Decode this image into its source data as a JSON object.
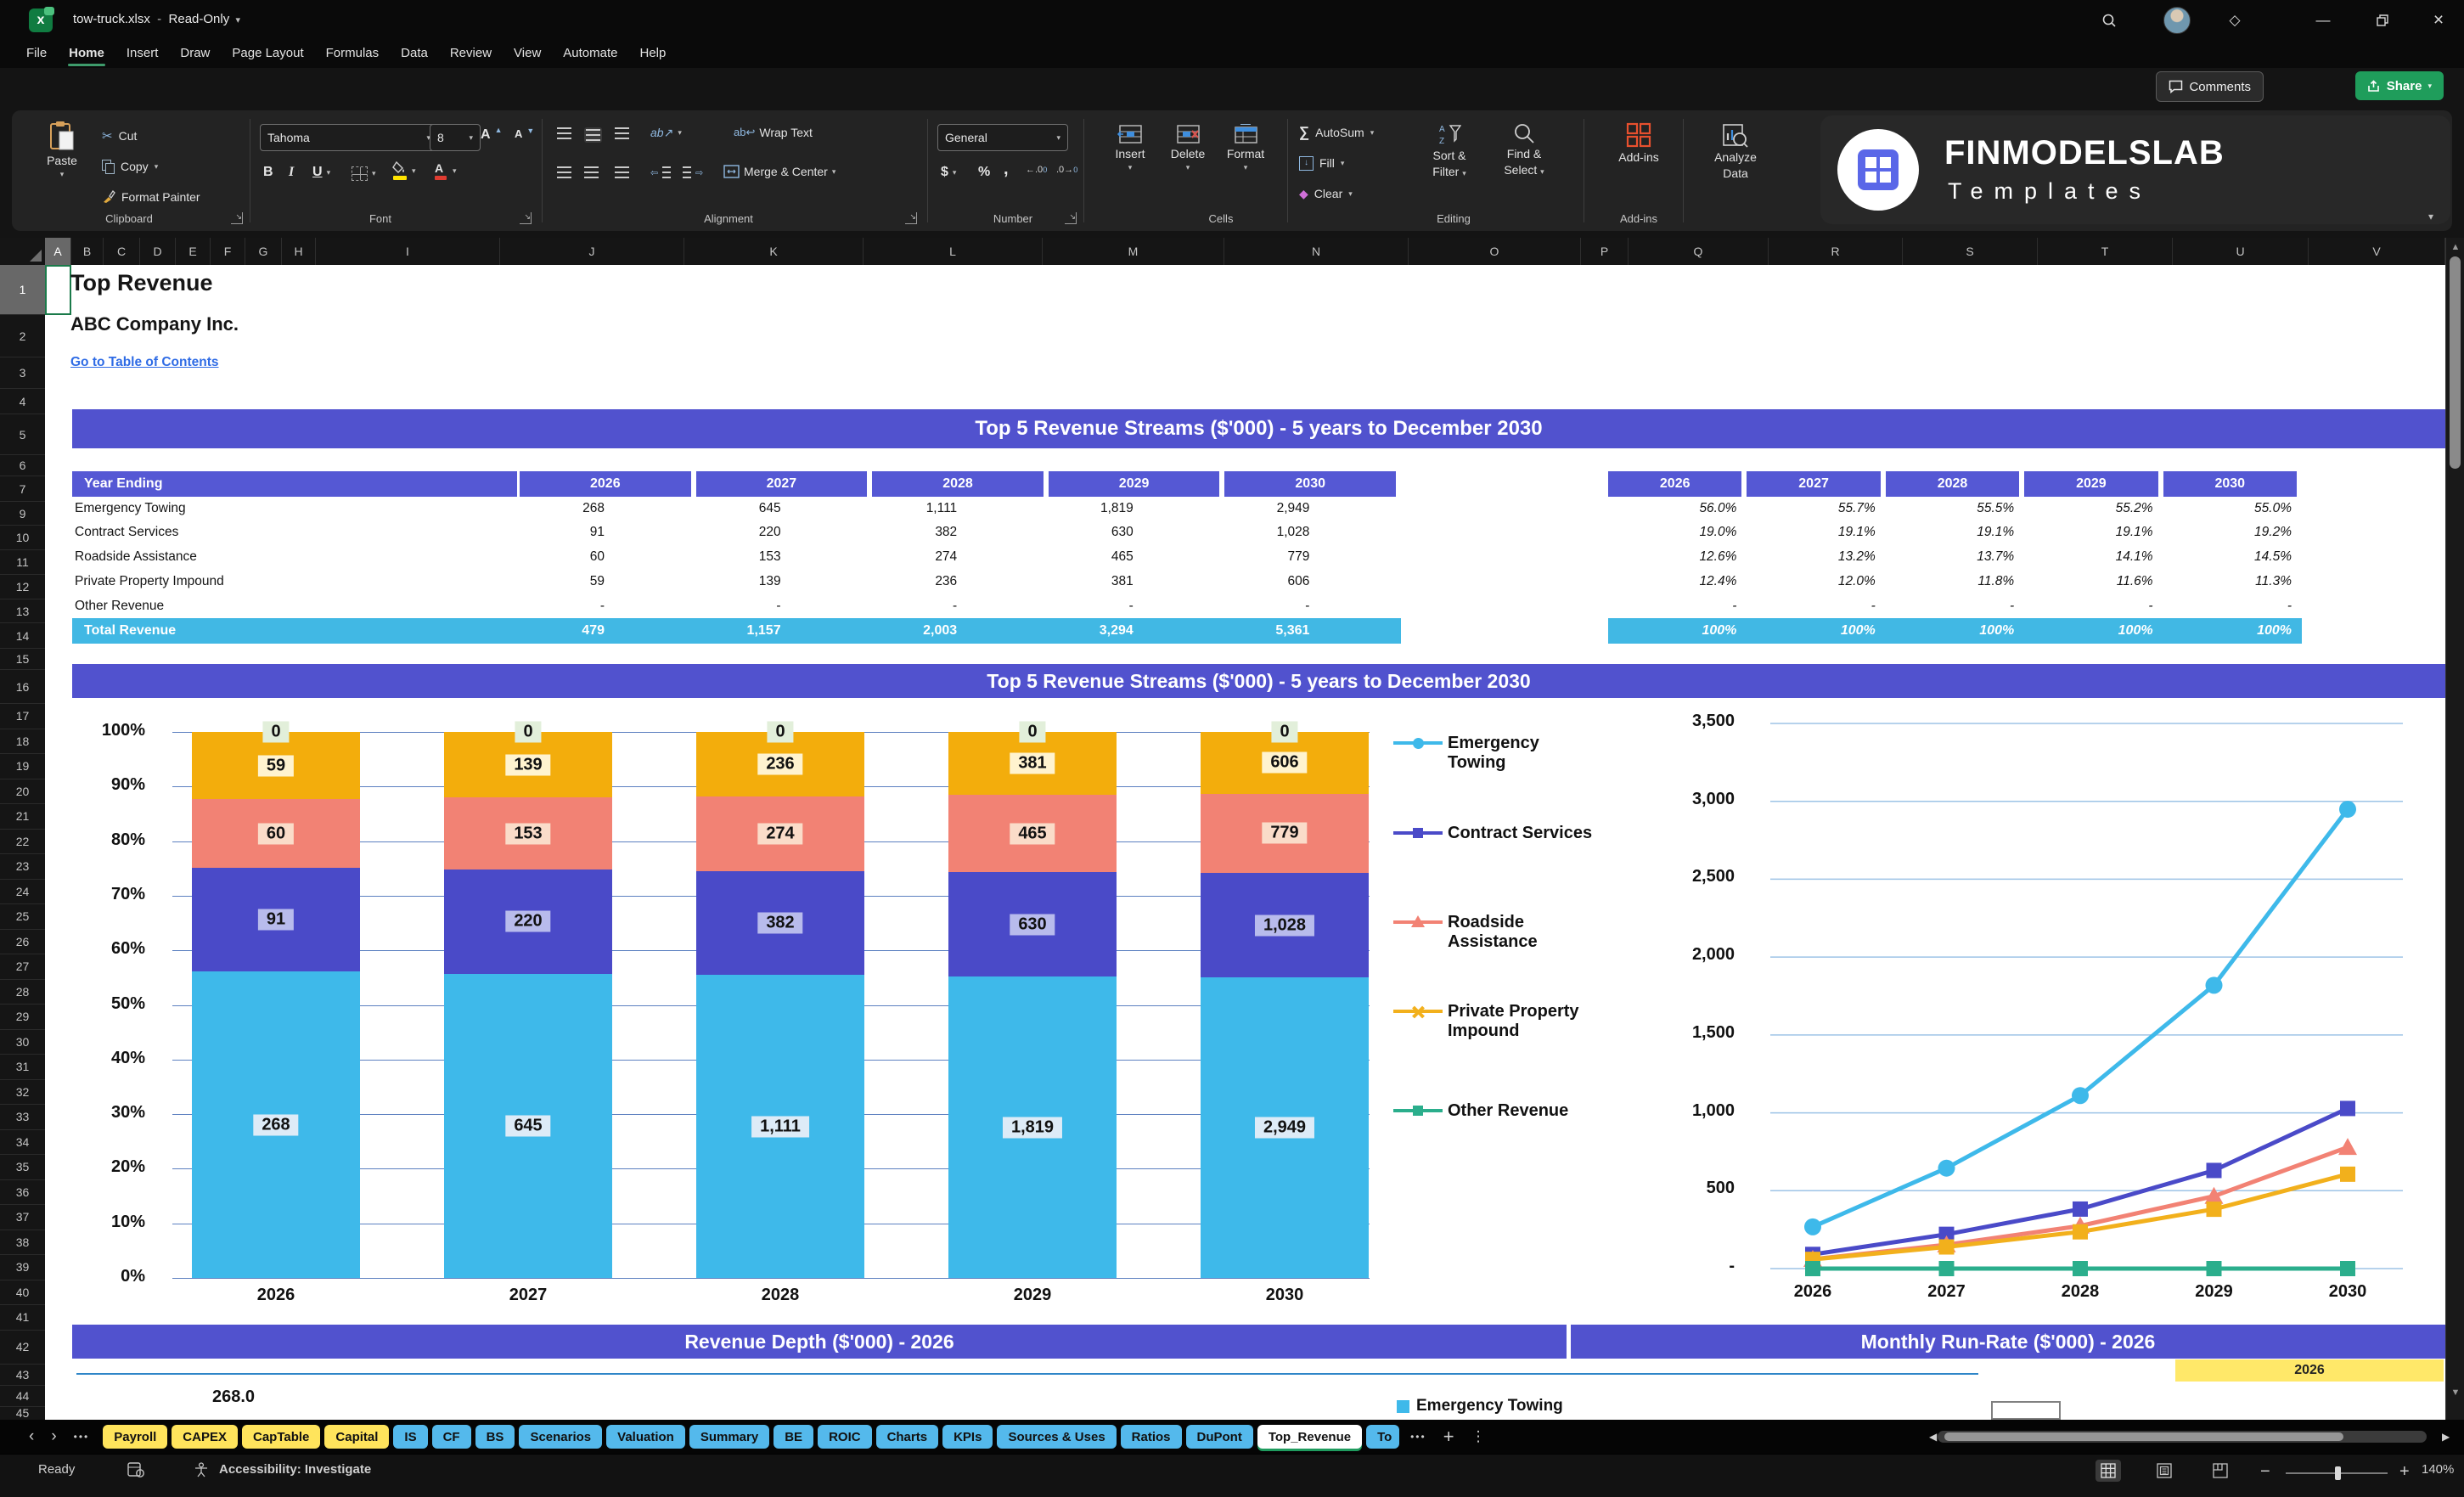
{
  "window": {
    "title": "tow-truck.xlsx",
    "mode": "Read-Only"
  },
  "menu": {
    "tabs": [
      "File",
      "Home",
      "Insert",
      "Draw",
      "Page Layout",
      "Formulas",
      "Data",
      "Review",
      "View",
      "Automate",
      "Help"
    ],
    "active_tab": "Home",
    "comments_label": "Comments",
    "share_label": "Share"
  },
  "ribbon": {
    "clipboard": {
      "label": "Clipboard",
      "paste": "Paste",
      "cut": "Cut",
      "copy": "Copy",
      "format_painter": "Format Painter"
    },
    "font": {
      "label": "Font",
      "font_name": "Tahoma",
      "font_size": "8"
    },
    "alignment": {
      "label": "Alignment",
      "wrap_text": "Wrap Text",
      "merge_center": "Merge & Center"
    },
    "number": {
      "label": "Number",
      "format": "General"
    },
    "cells": {
      "label": "Cells",
      "insert": "Insert",
      "delete": "Delete",
      "format": "Format"
    },
    "editing": {
      "label": "Editing",
      "autosum": "AutoSum",
      "fill": "Fill",
      "clear": "Clear",
      "sort_line1": "Sort &",
      "sort_line2": "Filter",
      "find_line1": "Find &",
      "find_line2": "Select"
    },
    "addins": {
      "label": "Add-ins",
      "button": "Add-ins",
      "analyze_line1": "Analyze",
      "analyze_line2": "Data"
    }
  },
  "brand": {
    "name": "FINMODELSLAB",
    "subtitle": "Templates"
  },
  "grid": {
    "selected_cell": "A1",
    "columns": [
      [
        "A",
        31
      ],
      [
        "B",
        38
      ],
      [
        "C",
        43
      ],
      [
        "D",
        42
      ],
      [
        "E",
        41
      ],
      [
        "F",
        41
      ],
      [
        "G",
        43
      ],
      [
        "H",
        40
      ],
      [
        "I",
        217
      ],
      [
        "J",
        217
      ],
      [
        "K",
        211
      ],
      [
        "L",
        211
      ],
      [
        "M",
        214
      ],
      [
        "N",
        217
      ],
      [
        "O",
        203
      ],
      [
        "P",
        56
      ],
      [
        "Q",
        165
      ],
      [
        "R",
        158
      ],
      [
        "S",
        159
      ],
      [
        "T",
        159
      ],
      [
        "U",
        160
      ],
      [
        "V",
        161
      ]
    ],
    "selected_column": "A",
    "rows": [
      [
        1,
        59
      ],
      [
        2,
        50
      ],
      [
        3,
        37
      ],
      [
        4,
        30
      ],
      [
        5,
        48
      ],
      [
        6,
        25
      ],
      [
        7,
        30
      ],
      [
        9,
        28
      ],
      [
        10,
        29
      ],
      [
        11,
        29
      ],
      [
        12,
        29
      ],
      [
        13,
        28
      ],
      [
        14,
        30
      ],
      [
        15,
        25
      ],
      [
        16,
        40
      ],
      [
        17,
        29.5
      ],
      [
        18,
        29.5
      ],
      [
        19,
        29.5
      ],
      [
        20,
        29.5
      ],
      [
        21,
        29.5
      ],
      [
        22,
        29.5
      ],
      [
        23,
        29.5
      ],
      [
        24,
        29.5
      ],
      [
        25,
        29.5
      ],
      [
        26,
        29.5
      ],
      [
        27,
        29.5
      ],
      [
        28,
        29.5
      ],
      [
        29,
        29.5
      ],
      [
        30,
        29.5
      ],
      [
        31,
        29.5
      ],
      [
        32,
        29.5
      ],
      [
        33,
        29.5
      ],
      [
        34,
        29.5
      ],
      [
        35,
        29.5
      ],
      [
        36,
        29.5
      ],
      [
        37,
        29.5
      ],
      [
        38,
        29.5
      ],
      [
        39,
        29.5
      ],
      [
        40,
        29.5
      ],
      [
        41,
        29.5
      ],
      [
        42,
        40
      ],
      [
        43,
        25
      ],
      [
        44,
        25
      ],
      [
        45,
        16
      ]
    ],
    "selected_row": 1
  },
  "sheet": {
    "title": "Top Revenue",
    "company": "ABC Company Inc.",
    "toc_link": "Go to Table of Contents",
    "banner_top": "Top 5 Revenue Streams ($'000) - 5 years to December 2030",
    "banner_chart": "Top 5 Revenue Streams ($'000) - 5 years to December 2030",
    "banner_depth": "Revenue Depth ($'000) - 2026",
    "banner_runrate": "Monthly Run-Rate ($'000) - 2026",
    "runrate_year": "2026",
    "depth_value_label": "268.0",
    "depth_legend": "Emergency Towing"
  },
  "revenue_table": {
    "header": [
      "Year Ending",
      "2026",
      "2027",
      "2028",
      "2029",
      "2030"
    ],
    "rows": [
      {
        "label": "Emergency Towing",
        "values": [
          "268",
          "645",
          "1,111",
          "1,819",
          "2,949"
        ]
      },
      {
        "label": "Contract Services",
        "values": [
          "91",
          "220",
          "382",
          "630",
          "1,028"
        ]
      },
      {
        "label": "Roadside Assistance",
        "values": [
          "60",
          "153",
          "274",
          "465",
          "779"
        ]
      },
      {
        "label": "Private Property Impound",
        "values": [
          "59",
          "139",
          "236",
          "381",
          "606"
        ]
      },
      {
        "label": "Other Revenue",
        "values": [
          "-",
          "-",
          "-",
          "-",
          "-"
        ]
      }
    ],
    "total": {
      "label": "Total Revenue",
      "values": [
        "479",
        "1,157",
        "2,003",
        "3,294",
        "5,361"
      ]
    }
  },
  "mix_table": {
    "header": [
      "2026",
      "2027",
      "2028",
      "2029",
      "2030"
    ],
    "rows": [
      [
        "56.0%",
        "55.7%",
        "55.5%",
        "55.2%",
        "55.0%"
      ],
      [
        "19.0%",
        "19.1%",
        "19.1%",
        "19.1%",
        "19.2%"
      ],
      [
        "12.6%",
        "13.2%",
        "13.7%",
        "14.1%",
        "14.5%"
      ],
      [
        "12.4%",
        "12.0%",
        "11.8%",
        "11.6%",
        "11.3%"
      ],
      [
        "-",
        "-",
        "-",
        "-",
        "-"
      ]
    ],
    "total": [
      "100%",
      "100%",
      "100%",
      "100%",
      "100%"
    ]
  },
  "chart_data": [
    {
      "type": "bar",
      "stacked": true,
      "percent_axis": true,
      "title": "Top 5 Revenue Streams ($'000) - 5 years to December 2030",
      "categories": [
        "2026",
        "2027",
        "2028",
        "2029",
        "2030"
      ],
      "series": [
        {
          "name": "Emergency Towing",
          "color": "#3EB9EA",
          "label_bg": "#DDEBF7",
          "values": [
            268,
            645,
            1111,
            1819,
            2949
          ],
          "labels": [
            "268",
            "645",
            "1,111",
            "1,819",
            "2,949"
          ]
        },
        {
          "name": "Contract Services",
          "color": "#4A4AC8",
          "label_bg": "#B8BBEC",
          "values": [
            91,
            220,
            382,
            630,
            1028
          ],
          "labels": [
            "91",
            "220",
            "382",
            "630",
            "1,028"
          ]
        },
        {
          "name": "Roadside Assistance",
          "color": "#F28274",
          "label_bg": "#FADCC9",
          "values": [
            60,
            153,
            274,
            465,
            779
          ],
          "labels": [
            "60",
            "153",
            "274",
            "465",
            "779"
          ]
        },
        {
          "name": "Private Property Impound",
          "color": "#F3AD0C",
          "label_bg": "#FFF3CF",
          "values": [
            59,
            139,
            236,
            381,
            606
          ],
          "labels": [
            "59",
            "139",
            "236",
            "381",
            "606"
          ]
        },
        {
          "name": "Other Revenue",
          "color": "#2BAE8C",
          "label_bg": "#E2EFDA",
          "values": [
            0,
            0,
            0,
            0,
            0
          ],
          "labels": [
            "0",
            "0",
            "0",
            "0",
            "0"
          ]
        }
      ],
      "y_ticks": [
        "100%",
        "90%",
        "80%",
        "70%",
        "60%",
        "50%",
        "40%",
        "30%",
        "20%",
        "10%",
        "0%"
      ],
      "ylim": [
        0,
        100
      ],
      "grid": true,
      "legend_position": "none"
    },
    {
      "type": "line",
      "categories": [
        "2026",
        "2027",
        "2028",
        "2029",
        "2030"
      ],
      "series": [
        {
          "name": "Emergency Towing",
          "color": "#3EB9EA",
          "marker": "circle",
          "legend_marker": "circle",
          "values": [
            268,
            645,
            1111,
            1819,
            2949
          ]
        },
        {
          "name": "Contract Services",
          "color": "#4A4AC8",
          "marker": "square",
          "legend_marker": "square",
          "values": [
            91,
            220,
            382,
            630,
            1028
          ]
        },
        {
          "name": "Roadside Assistance",
          "color": "#F28274",
          "marker": "triangle",
          "legend_marker": "triangle",
          "values": [
            60,
            153,
            274,
            465,
            779
          ]
        },
        {
          "name": "Private Property Impound",
          "color": "#F2B01C",
          "marker": "square",
          "legend_marker": "x",
          "values": [
            59,
            139,
            236,
            381,
            606
          ]
        },
        {
          "name": "Other Revenue",
          "color": "#2BAE8C",
          "marker": "square",
          "legend_marker": "square",
          "values": [
            0,
            0,
            0,
            0,
            0
          ]
        }
      ],
      "y_ticks": [
        "3,500",
        "3,000",
        "2,500",
        "2,000",
        "1,500",
        "1,000",
        "500",
        "-"
      ],
      "ylim": [
        0,
        3500
      ],
      "grid": true,
      "legend_position": "left"
    },
    {
      "type": "line",
      "title": "Revenue Depth ($'000) - 2026",
      "partially_visible": true,
      "series": [
        {
          "name": "Emergency Towing",
          "color": "#3EB9EA",
          "first_label": "268.0"
        }
      ]
    },
    {
      "type": "unknown",
      "title": "Monthly Run-Rate ($'000) - 2026",
      "year_cell": "2026",
      "partially_visible": true
    }
  ],
  "sheet_tabs": {
    "items": [
      {
        "label": "Payroll",
        "color": "yellow"
      },
      {
        "label": "CAPEX",
        "color": "yellow"
      },
      {
        "label": "CapTable",
        "color": "yellow"
      },
      {
        "label": "Capital",
        "color": "yellow"
      },
      {
        "label": "IS",
        "color": "blue"
      },
      {
        "label": "CF",
        "color": "blue"
      },
      {
        "label": "BS",
        "color": "blue"
      },
      {
        "label": "Scenarios",
        "color": "blue"
      },
      {
        "label": "Valuation",
        "color": "blue"
      },
      {
        "label": "Summary",
        "color": "blue"
      },
      {
        "label": "BE",
        "color": "blue"
      },
      {
        "label": "ROIC",
        "color": "blue"
      },
      {
        "label": "Charts",
        "color": "blue"
      },
      {
        "label": "KPIs",
        "color": "blue"
      },
      {
        "label": "Sources & Uses",
        "color": "blue"
      },
      {
        "label": "Ratios",
        "color": "blue"
      },
      {
        "label": "DuPont",
        "color": "blue"
      },
      {
        "label": "Top_Revenue",
        "color": "white",
        "active": true
      },
      {
        "label": "To",
        "color": "blue",
        "truncated": true
      }
    ]
  },
  "status_bar": {
    "ready": "Ready",
    "accessibility": "Accessibility: Investigate",
    "zoom": "140%"
  }
}
